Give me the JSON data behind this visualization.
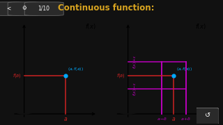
{
  "bg_color": "#111111",
  "title_text": "Continuous function:",
  "title_color": "#DAA520",
  "title_fontsize": 8.5,
  "panel_bg": "#f5f5f0",
  "panel_edge": "#cccccc",
  "curve_color": "#111111",
  "dot_color": "#00aaff",
  "red_color": "#cc2222",
  "magenta_color": "#bb00bb",
  "a_val": 1.6,
  "eps": 0.55,
  "delta": 0.38,
  "xlim": [
    -0.3,
    2.8
  ],
  "ylim": [
    -0.9,
    3.2
  ],
  "curve_shift": 0.15,
  "curve_scale": 0.75
}
